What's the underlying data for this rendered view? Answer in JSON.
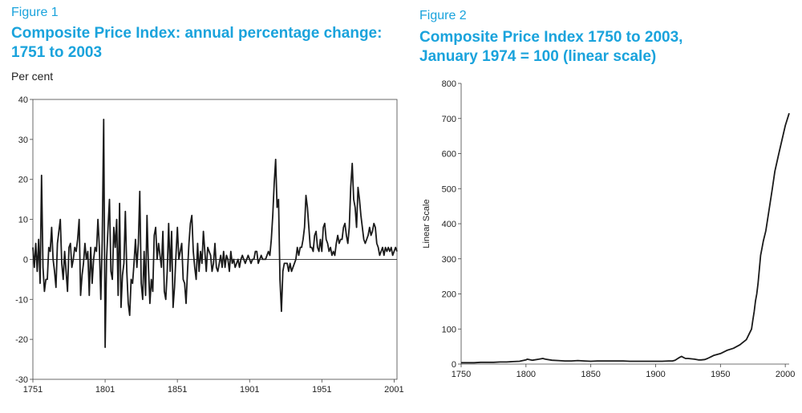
{
  "figure1": {
    "label": "Figure 1",
    "title_line1": "Composite Price Index: annual percentage change:",
    "title_line2": "1751 to 2003",
    "unit": "Per cent"
  },
  "figure2": {
    "label": "Figure 2",
    "title_line1": "Composite Price Index 1750 to 2003,",
    "title_line2": "January 1974 = 100 (linear scale)"
  },
  "colors": {
    "title": "#1aa3dc",
    "line": "#1a1a1a"
  },
  "chart_data": [
    {
      "type": "line",
      "title": "Composite Price Index: annual percentage change: 1751 to 2003",
      "xlabel": "",
      "ylabel": "Per cent",
      "xlim": [
        1751,
        2003
      ],
      "ylim": [
        -30,
        40
      ],
      "xticks": [
        1751,
        1801,
        1851,
        1901,
        1951,
        2001
      ],
      "yticks": [
        -30,
        -20,
        -10,
        0,
        10,
        20,
        30,
        40
      ],
      "series": [
        {
          "name": "Annual percentage change",
          "x": [
            1751,
            1752,
            1753,
            1754,
            1755,
            1756,
            1757,
            1758,
            1759,
            1760,
            1761,
            1762,
            1763,
            1764,
            1765,
            1766,
            1767,
            1768,
            1769,
            1770,
            1771,
            1772,
            1773,
            1774,
            1775,
            1776,
            1777,
            1778,
            1779,
            1780,
            1781,
            1782,
            1783,
            1784,
            1785,
            1786,
            1787,
            1788,
            1789,
            1790,
            1791,
            1792,
            1793,
            1794,
            1795,
            1796,
            1797,
            1798,
            1799,
            1800,
            1801,
            1802,
            1803,
            1804,
            1805,
            1806,
            1807,
            1808,
            1809,
            1810,
            1811,
            1812,
            1813,
            1814,
            1815,
            1816,
            1817,
            1818,
            1819,
            1820,
            1821,
            1822,
            1823,
            1824,
            1825,
            1826,
            1827,
            1828,
            1829,
            1830,
            1831,
            1832,
            1833,
            1834,
            1835,
            1836,
            1837,
            1838,
            1839,
            1840,
            1841,
            1842,
            1843,
            1844,
            1845,
            1846,
            1847,
            1848,
            1849,
            1850,
            1851,
            1852,
            1853,
            1854,
            1855,
            1856,
            1857,
            1858,
            1859,
            1860,
            1861,
            1862,
            1863,
            1864,
            1865,
            1866,
            1867,
            1868,
            1869,
            1870,
            1871,
            1872,
            1873,
            1874,
            1875,
            1876,
            1877,
            1878,
            1879,
            1880,
            1881,
            1882,
            1883,
            1884,
            1885,
            1886,
            1887,
            1888,
            1889,
            1890,
            1891,
            1892,
            1893,
            1894,
            1895,
            1896,
            1897,
            1898,
            1899,
            1900,
            1901,
            1902,
            1903,
            1904,
            1905,
            1906,
            1907,
            1908,
            1909,
            1910,
            1911,
            1912,
            1913,
            1914,
            1915,
            1916,
            1917,
            1918,
            1919,
            1920,
            1921,
            1922,
            1923,
            1924,
            1925,
            1926,
            1927,
            1928,
            1929,
            1930,
            1931,
            1932,
            1933,
            1934,
            1935,
            1936,
            1937,
            1938,
            1939,
            1940,
            1941,
            1942,
            1943,
            1944,
            1945,
            1946,
            1947,
            1948,
            1949,
            1950,
            1951,
            1952,
            1953,
            1954,
            1955,
            1956,
            1957,
            1958,
            1959,
            1960,
            1961,
            1962,
            1963,
            1964,
            1965,
            1966,
            1967,
            1968,
            1969,
            1970,
            1971,
            1972,
            1973,
            1974,
            1975,
            1976,
            1977,
            1978,
            1979,
            1980,
            1981,
            1982,
            1983,
            1984,
            1985,
            1986,
            1987,
            1988,
            1989,
            1990,
            1991,
            1992,
            1993,
            1994,
            1995,
            1996,
            1997,
            1998,
            1999,
            2000,
            2001,
            2002,
            2003
          ],
          "values": [
            3,
            -2,
            4,
            -3,
            5,
            -6,
            21,
            -2,
            -8,
            -5,
            -5,
            3,
            2,
            8,
            0,
            -3,
            -7,
            4,
            7,
            10,
            -1,
            -5,
            2,
            -3,
            -8,
            3,
            4,
            -2,
            0,
            3,
            2,
            5,
            10,
            -9,
            -4,
            -1,
            4,
            0,
            2,
            -9,
            3,
            -6,
            0,
            3,
            2,
            10,
            3,
            -10,
            5,
            35,
            -22,
            0,
            8,
            15,
            -3,
            -5,
            8,
            3,
            10,
            -9,
            14,
            -12,
            -4,
            -1,
            12,
            -3,
            -11,
            -14,
            -5,
            -6,
            -1,
            5,
            -2,
            4,
            17,
            -6,
            -10,
            2,
            -9,
            11,
            -2,
            -11,
            -5,
            -8,
            6,
            8,
            0,
            4,
            1,
            -2,
            7,
            -8,
            -10,
            -3,
            9,
            -3,
            7,
            -12,
            -7,
            1,
            8,
            0,
            2,
            4,
            -5,
            -6,
            -11,
            -3,
            4,
            9,
            11,
            2,
            -2,
            -5,
            4,
            -3,
            2,
            -1,
            7,
            2,
            -3,
            3,
            2,
            1,
            -3,
            -1,
            4,
            -2,
            -3,
            -1,
            1,
            -2,
            2,
            -2,
            1,
            0,
            -3,
            2,
            -1,
            0,
            -2,
            -1,
            0,
            -2,
            0,
            1,
            0,
            -1,
            0,
            1,
            0,
            -1,
            0,
            0,
            2,
            2,
            -1,
            0,
            1,
            0,
            0,
            0,
            1,
            2,
            1,
            5,
            11,
            19,
            25,
            13,
            15,
            -5,
            -13,
            -3,
            -1,
            -1,
            -1,
            -3,
            -1,
            -3,
            -2,
            -1,
            0,
            3,
            1,
            3,
            3,
            5,
            8,
            16,
            13,
            8,
            3,
            3,
            2,
            6,
            7,
            3,
            2,
            5,
            2,
            8,
            9,
            5,
            4,
            2,
            3,
            1,
            2,
            1,
            4,
            6,
            4,
            5,
            5,
            8,
            9,
            6,
            4,
            8,
            18,
            24,
            15,
            13,
            8,
            18,
            15,
            11,
            8,
            5,
            4,
            5,
            6,
            8,
            6,
            7,
            9,
            8,
            4,
            3,
            1,
            2,
            3,
            1,
            3,
            2,
            3,
            2,
            3,
            1,
            2,
            3,
            2
          ]
        }
      ]
    },
    {
      "type": "line",
      "title": "Composite Price Index 1750 to 2003, January 1974 = 100 (linear scale)",
      "xlabel": "",
      "ylabel": "Linear Scale",
      "xlim": [
        1750,
        2003
      ],
      "ylim": [
        0,
        800
      ],
      "xticks": [
        1750,
        1800,
        1850,
        1900,
        1950,
        2000
      ],
      "yticks": [
        0,
        100,
        200,
        300,
        400,
        500,
        600,
        700,
        800
      ],
      "series": [
        {
          "name": "Composite Price Index",
          "x": [
            1750,
            1755,
            1760,
            1765,
            1770,
            1775,
            1780,
            1785,
            1790,
            1795,
            1800,
            1801,
            1805,
            1810,
            1813,
            1815,
            1820,
            1825,
            1830,
            1835,
            1840,
            1845,
            1850,
            1855,
            1860,
            1865,
            1870,
            1875,
            1880,
            1885,
            1890,
            1895,
            1900,
            1905,
            1910,
            1913,
            1915,
            1918,
            1920,
            1921,
            1923,
            1925,
            1930,
            1933,
            1935,
            1938,
            1940,
            1945,
            1950,
            1955,
            1960,
            1965,
            1970,
            1972,
            1974,
            1975,
            1976,
            1977,
            1978,
            1979,
            1980,
            1981,
            1982,
            1983,
            1985,
            1990,
            1992,
            1995,
            2000,
            2003
          ],
          "values": [
            4,
            4,
            4,
            5,
            5,
            5,
            6,
            6,
            7,
            8,
            12,
            14,
            11,
            14,
            16,
            14,
            11,
            10,
            9,
            9,
            10,
            9,
            8,
            9,
            9,
            9,
            9,
            9,
            8,
            8,
            8,
            8,
            8,
            8,
            9,
            9,
            11,
            18,
            22,
            20,
            16,
            16,
            14,
            12,
            12,
            13,
            16,
            25,
            30,
            39,
            45,
            55,
            70,
            85,
            100,
            125,
            150,
            180,
            200,
            230,
            270,
            310,
            330,
            350,
            380,
            500,
            550,
            600,
            680,
            715
          ]
        }
      ]
    }
  ]
}
